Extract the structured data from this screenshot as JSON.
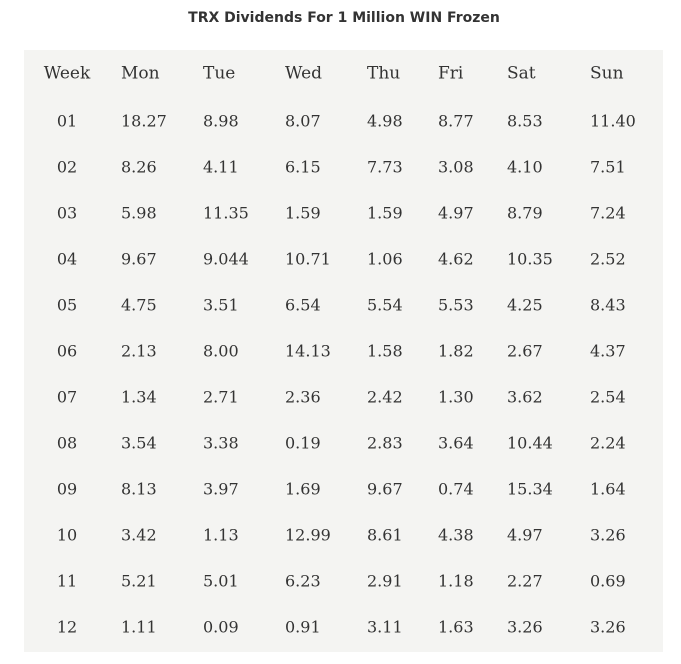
{
  "title": "TRX Dividends For 1 Million WIN Frozen",
  "table": {
    "header": [
      "Week",
      "Mon",
      "Tue",
      "Wed",
      "Thu",
      "Fri",
      "Sat",
      "Sun"
    ],
    "rows": [
      [
        "01",
        "18.27",
        "8.98",
        "8.07",
        "4.98",
        "8.77",
        "8.53",
        "11.40"
      ],
      [
        "02",
        "8.26",
        "4.11",
        "6.15",
        "7.73",
        "3.08",
        "4.10",
        "7.51"
      ],
      [
        "03",
        "5.98",
        "11.35",
        "1.59",
        "1.59",
        "4.97",
        "8.79",
        "7.24"
      ],
      [
        "04",
        "9.67",
        "9.044",
        "10.71",
        "1.06",
        "4.62",
        "10.35",
        "2.52"
      ],
      [
        "05",
        "4.75",
        "3.51",
        "6.54",
        "5.54",
        "5.53",
        "4.25",
        "8.43"
      ],
      [
        "06",
        "2.13",
        "8.00",
        "14.13",
        "1.58",
        "1.82",
        "2.67",
        "4.37"
      ],
      [
        "07",
        "1.34",
        "2.71",
        "2.36",
        "2.42",
        "1.30",
        "3.62",
        "2.54"
      ],
      [
        "08",
        "3.54",
        "3.38",
        "0.19",
        "2.83",
        "3.64",
        "10.44",
        "2.24"
      ],
      [
        "09",
        "8.13",
        "3.97",
        "1.69",
        "9.67",
        "0.74",
        "15.34",
        "1.64"
      ],
      [
        "10",
        "3.42",
        "1.13",
        "12.99",
        "8.61",
        "4.38",
        "4.97",
        "3.26"
      ],
      [
        "11",
        "5.21",
        "5.01",
        "6.23",
        "2.91",
        "1.18",
        "2.27",
        "0.69"
      ],
      [
        "12",
        "1.11",
        "0.09",
        "0.91",
        "3.11",
        "1.63",
        "3.26",
        "3.26"
      ]
    ]
  }
}
